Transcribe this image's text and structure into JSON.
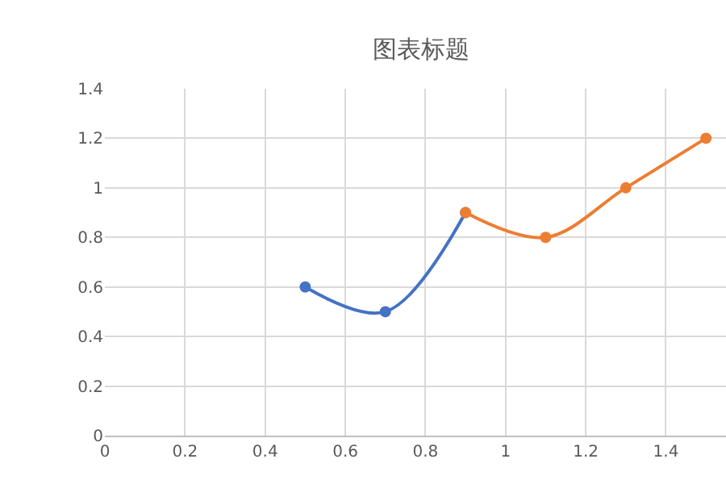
{
  "chart_data": {
    "type": "line",
    "title": "图表标题",
    "series": [
      {
        "color": "#4472c4",
        "x": [
          0.5,
          0.7,
          0.9
        ],
        "values": [
          0.6,
          0.5,
          0.9
        ]
      },
      {
        "color": "#ed7d31",
        "x": [
          0.9,
          1.1,
          1.3,
          1.5
        ],
        "values": [
          0.9,
          0.8,
          1.0,
          1.2
        ]
      }
    ],
    "xlim": [
      0,
      1.55
    ],
    "xticks": [
      0,
      0.2,
      0.4,
      0.6,
      0.8,
      1,
      1.2,
      1.4
    ],
    "ylim": [
      0,
      1.4
    ],
    "yticks": [
      0,
      0.2,
      0.4,
      0.6,
      0.8,
      1,
      1.2,
      1.4
    ],
    "grid": true,
    "marker": "circle",
    "line_style": "solid",
    "legend": false
  }
}
